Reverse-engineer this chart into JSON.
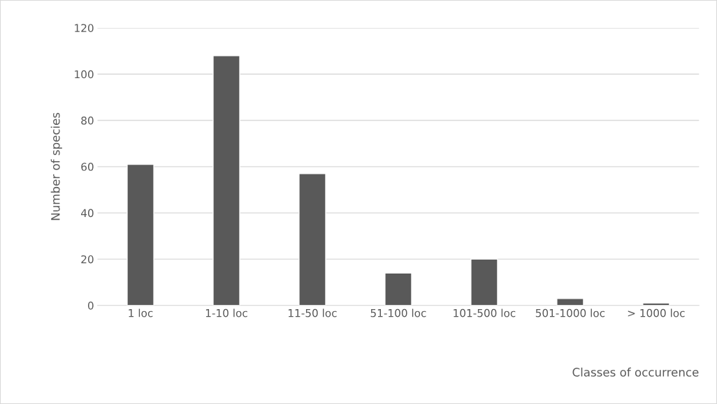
{
  "chart_data": {
    "type": "bar",
    "xlabel": "Classes of occurrence",
    "ylabel": "Number of species",
    "categories": [
      "1 loc",
      "1-10 loc",
      "11-50 loc",
      "51-100 loc",
      "101-500 loc",
      "501-1000 loc",
      "> 1000 loc"
    ],
    "values": [
      61,
      108,
      57,
      14,
      20,
      3,
      1
    ],
    "color": "#595959",
    "ylim": [
      0,
      120
    ],
    "yticks": [
      0,
      20,
      40,
      60,
      80,
      100,
      120
    ],
    "grid": "y",
    "legend": false
  }
}
